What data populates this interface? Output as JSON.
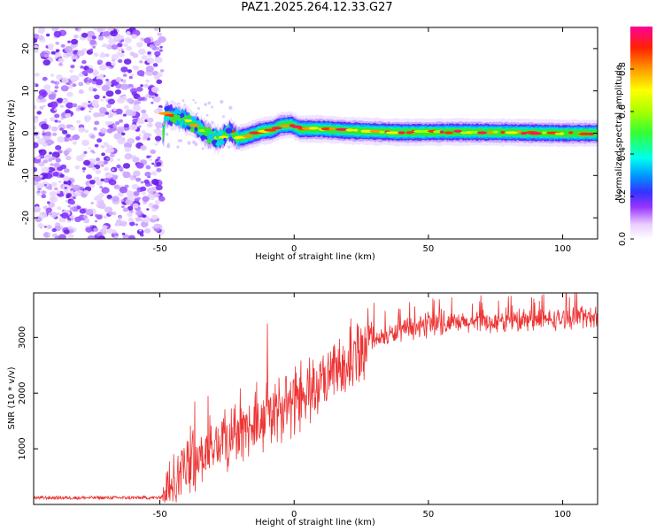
{
  "title": "PAZ1.2025.264.12.33.G27",
  "chart_data": [
    {
      "type": "heatmap",
      "xlabel": "Height of straight line (km)",
      "ylabel": "Frequency (Hz)",
      "xlim": [
        -97,
        113
      ],
      "ylim": [
        -25,
        25
      ],
      "xticks": [
        -50,
        0,
        50,
        100
      ],
      "yticks": [
        -20,
        -10,
        0,
        10,
        20
      ],
      "noise_region_x": [
        -97,
        -49
      ],
      "signal_center_track": [
        {
          "x": -48,
          "y": 4.5
        },
        {
          "x": -44,
          "y": 4.0
        },
        {
          "x": -40,
          "y": 3.0
        },
        {
          "x": -36,
          "y": 1.5
        },
        {
          "x": -32,
          "y": -0.5
        },
        {
          "x": -28,
          "y": -1.5
        },
        {
          "x": -24,
          "y": 0.5
        },
        {
          "x": -21,
          "y": -1.2
        },
        {
          "x": -18,
          "y": -0.8
        },
        {
          "x": -12,
          "y": 0.5
        },
        {
          "x": -8,
          "y": 0.8
        },
        {
          "x": -5,
          "y": 1.8
        },
        {
          "x": -1,
          "y": 2.0
        },
        {
          "x": 2,
          "y": 1.0
        },
        {
          "x": 10,
          "y": 1.0
        },
        {
          "x": 20,
          "y": 0.6
        },
        {
          "x": 40,
          "y": 0.2
        },
        {
          "x": 60,
          "y": 0.3
        },
        {
          "x": 80,
          "y": 0.2
        },
        {
          "x": 100,
          "y": 0.0
        },
        {
          "x": 113,
          "y": 0.0
        }
      ]
    },
    {
      "type": "colorbar",
      "label": "Normalized spectral amplitude",
      "range": [
        0,
        1
      ],
      "ticks": [
        "0.0",
        "0.2",
        "0.4",
        "0.6",
        "0.8"
      ],
      "tick_values": [
        0.0,
        0.2,
        0.4,
        0.6,
        0.8
      ]
    },
    {
      "type": "line",
      "xlabel": "Height of straight line (km)",
      "ylabel": "SNR (10 * v/v)",
      "xlim": [
        -97,
        113
      ],
      "ylim": [
        0,
        3800
      ],
      "xticks": [
        -50,
        0,
        50,
        100
      ],
      "yticks": [
        1000,
        2000,
        3000
      ],
      "series": [
        {
          "name": "SNR",
          "color": "#ee3333",
          "trend": [
            {
              "x": -97,
              "y": 120
            },
            {
              "x": -50,
              "y": 120
            },
            {
              "x": -47,
              "y": 250
            },
            {
              "x": -40,
              "y": 700
            },
            {
              "x": -30,
              "y": 1000
            },
            {
              "x": -20,
              "y": 1300
            },
            {
              "x": -10,
              "y": 1550
            },
            {
              "x": 0,
              "y": 1800
            },
            {
              "x": 10,
              "y": 2100
            },
            {
              "x": 20,
              "y": 2550
            },
            {
              "x": 30,
              "y": 2950
            },
            {
              "x": 40,
              "y": 3120
            },
            {
              "x": 50,
              "y": 3200
            },
            {
              "x": 60,
              "y": 3250
            },
            {
              "x": 80,
              "y": 3280
            },
            {
              "x": 100,
              "y": 3330
            },
            {
              "x": 113,
              "y": 3380
            }
          ],
          "spikes": [
            {
              "x": -37,
              "y": 1850
            },
            {
              "x": -32,
              "y": 1950
            },
            {
              "x": -29,
              "y": 1400
            },
            {
              "x": -22,
              "y": 1800
            },
            {
              "x": -14,
              "y": 2200
            },
            {
              "x": -10,
              "y": 3250
            },
            {
              "x": -3,
              "y": 2300
            },
            {
              "x": 7,
              "y": 2600
            }
          ]
        }
      ]
    }
  ]
}
